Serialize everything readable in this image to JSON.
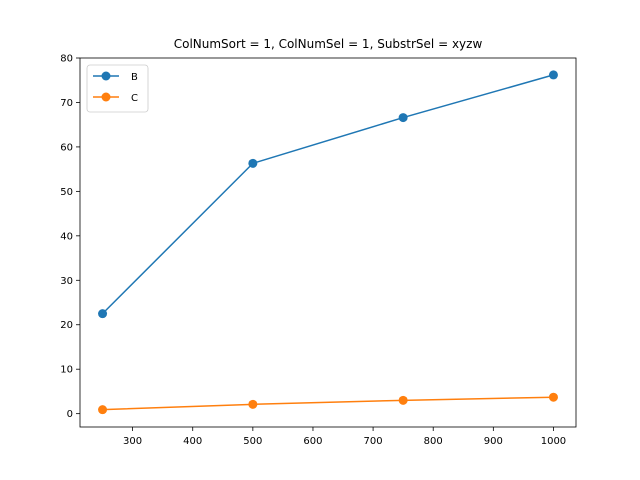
{
  "chart_data": {
    "type": "line",
    "title": "ColNumSort = 1, ColNumSel = 1, SubstrSel = xyzw",
    "xlabel": "",
    "ylabel": "",
    "x": [
      250,
      500,
      750,
      1000
    ],
    "xlim": [
      212.5,
      1037.5
    ],
    "ylim": [
      -3,
      80
    ],
    "xticks": [
      300,
      400,
      500,
      600,
      700,
      800,
      900,
      1000
    ],
    "yticks": [
      0,
      10,
      20,
      30,
      40,
      50,
      60,
      70,
      80
    ],
    "xtick_labels": [
      "300",
      "400",
      "500",
      "600",
      "700",
      "800",
      "900",
      "1000"
    ],
    "ytick_labels": [
      "0",
      "10",
      "20",
      "30",
      "40",
      "50",
      "60",
      "70",
      "80"
    ],
    "series": [
      {
        "name": "B",
        "color": "#1f77b4",
        "values": [
          22.5,
          56.3,
          66.6,
          76.2
        ]
      },
      {
        "name": "C",
        "color": "#ff7f0e",
        "values": [
          0.9,
          2.1,
          3.0,
          3.7
        ]
      }
    ],
    "grid": false,
    "legend_position": "upper-left",
    "marker": "circle"
  }
}
